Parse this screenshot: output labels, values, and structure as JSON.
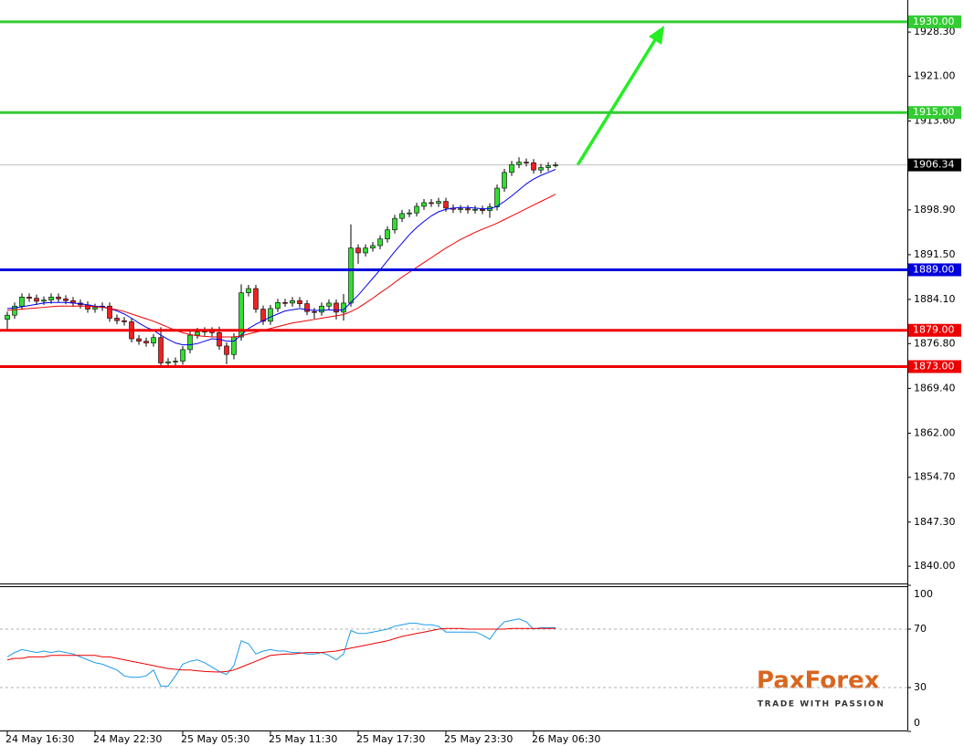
{
  "chart_data": [
    {
      "type": "candlestick",
      "categories": [
        "24 May 16:30",
        null,
        null,
        null,
        null,
        null,
        null,
        null,
        null,
        null,
        null,
        null,
        "24 May 22:30",
        null,
        null,
        null,
        null,
        null,
        null,
        null,
        null,
        null,
        null,
        null,
        "25 May 05:30",
        null,
        null,
        null,
        null,
        null,
        null,
        null,
        null,
        null,
        null,
        null,
        "25 May 11:30",
        null,
        null,
        null,
        null,
        null,
        null,
        null,
        null,
        null,
        null,
        null,
        "25 May 17:30",
        null,
        null,
        null,
        null,
        null,
        null,
        null,
        null,
        null,
        null,
        null,
        "25 May 23:30",
        null,
        null,
        null,
        null,
        null,
        null,
        null,
        null,
        null,
        null,
        null,
        "26 May 06:30",
        null,
        null,
        null
      ],
      "open": [
        1880.8,
        1881.5,
        1883.0,
        1884.5,
        1884.3,
        1883.8,
        1884.0,
        1884.5,
        1884.2,
        1883.9,
        1883.5,
        1883.2,
        1882.5,
        1882.8,
        1883.0,
        1881.0,
        1880.6,
        1880.4,
        1877.6,
        1877.2,
        1876.9,
        1877.8,
        1873.6,
        1873.8,
        1873.9,
        1875.8,
        1878.2,
        1878.7,
        1878.9,
        1878.6,
        1876.4,
        1875.0,
        1877.9,
        1885.2,
        1885.9,
        1882.5,
        1880.5,
        1882.6,
        1883.6,
        1883.5,
        1883.9,
        1883.4,
        1882.1,
        1882.0,
        1883.0,
        1883.5,
        1882.0,
        1883.5,
        1892.6,
        1891.8,
        1892.6,
        1893.0,
        1894.1,
        1895.6,
        1897.5,
        1898.3,
        1898.4,
        1899.5,
        1900.1,
        1900.0,
        1900.3,
        1899.2,
        1899.0,
        1899.1,
        1898.9,
        1899.0,
        1898.8,
        1899.4,
        1902.5,
        1905.1,
        1906.4,
        1906.8,
        1906.7,
        1905.5,
        1905.9,
        1906.2
      ],
      "high": [
        1882.1,
        1883.6,
        1885.1,
        1885.1,
        1884.9,
        1884.6,
        1885.1,
        1885.1,
        1884.8,
        1884.5,
        1884.1,
        1883.8,
        1883.4,
        1883.6,
        1883.6,
        1881.6,
        1881.2,
        1881.0,
        1878.2,
        1877.8,
        1878.4,
        1879.5,
        1874.4,
        1874.5,
        1876.4,
        1878.8,
        1879.4,
        1879.5,
        1879.5,
        1879.6,
        1877.0,
        1878.5,
        1886.6,
        1886.5,
        1886.5,
        1883.1,
        1883.2,
        1884.2,
        1884.2,
        1884.5,
        1884.5,
        1884.0,
        1882.7,
        1883.6,
        1884.1,
        1884.1,
        1885.0,
        1896.5,
        1893.2,
        1893.2,
        1893.6,
        1894.7,
        1896.2,
        1898.1,
        1898.9,
        1899.0,
        1900.1,
        1900.7,
        1900.7,
        1900.9,
        1900.9,
        1899.8,
        1899.7,
        1899.7,
        1899.6,
        1899.6,
        1900.0,
        1903.1,
        1905.7,
        1907.0,
        1907.6,
        1907.4,
        1907.3,
        1906.5,
        1906.8,
        1906.8
      ],
      "low": [
        1879.2,
        1880.9,
        1882.4,
        1883.7,
        1883.2,
        1883.2,
        1883.4,
        1883.6,
        1883.3,
        1882.9,
        1882.6,
        1881.9,
        1881.9,
        1882.2,
        1880.4,
        1880.0,
        1879.8,
        1877.0,
        1876.6,
        1876.3,
        1876.3,
        1872.8,
        1872.8,
        1872.9,
        1873.3,
        1875.2,
        1877.6,
        1878.1,
        1878.0,
        1875.8,
        1873.4,
        1874.2,
        1877.3,
        1884.6,
        1881.9,
        1879.9,
        1879.9,
        1882.0,
        1882.9,
        1882.9,
        1882.8,
        1881.5,
        1880.9,
        1881.4,
        1882.4,
        1880.8,
        1880.6,
        1882.9,
        1890.0,
        1891.2,
        1892.0,
        1892.4,
        1893.5,
        1895.0,
        1896.9,
        1897.7,
        1897.8,
        1898.9,
        1899.4,
        1899.4,
        1898.6,
        1898.4,
        1898.4,
        1898.3,
        1898.3,
        1898.2,
        1897.6,
        1898.8,
        1901.9,
        1904.5,
        1905.8,
        1906.1,
        1904.9,
        1904.9,
        1905.3,
        1905.9
      ],
      "close": [
        1881.5,
        1883.0,
        1884.5,
        1884.3,
        1883.8,
        1884.0,
        1884.5,
        1884.2,
        1883.9,
        1883.5,
        1883.2,
        1882.5,
        1882.8,
        1883.0,
        1881.0,
        1880.6,
        1880.4,
        1877.6,
        1877.2,
        1876.9,
        1877.8,
        1873.6,
        1873.8,
        1873.9,
        1875.8,
        1878.2,
        1878.7,
        1878.9,
        1878.6,
        1876.4,
        1875.0,
        1877.9,
        1885.2,
        1885.9,
        1882.5,
        1880.5,
        1882.6,
        1883.6,
        1883.5,
        1883.9,
        1883.4,
        1882.1,
        1882.0,
        1883.0,
        1883.5,
        1882.0,
        1883.5,
        1892.6,
        1891.8,
        1892.6,
        1893.0,
        1894.1,
        1895.6,
        1897.5,
        1898.3,
        1898.4,
        1899.5,
        1900.1,
        1900.0,
        1900.3,
        1899.2,
        1899.0,
        1899.1,
        1898.9,
        1899.0,
        1898.8,
        1899.4,
        1902.5,
        1905.1,
        1906.4,
        1906.8,
        1906.7,
        1905.5,
        1905.9,
        1906.2,
        1906.34
      ],
      "up_color": "#33dd33",
      "down_color": "#ee2222",
      "wick_color": "#000000",
      "overlays": [
        {
          "color": "#0000ee",
          "values": [
            1882.6,
            1882.7,
            1882.9,
            1883.1,
            1883.3,
            1883.5,
            1883.6,
            1883.6,
            1883.6,
            1883.5,
            1883.4,
            1883.2,
            1883.0,
            1882.9,
            1882.6,
            1882.2,
            1881.7,
            1881.0,
            1880.2,
            1879.5,
            1879.0,
            1878.2,
            1877.5,
            1876.9,
            1876.6,
            1876.6,
            1876.8,
            1877.2,
            1877.6,
            1877.5,
            1877.2,
            1877.2,
            1878.2,
            1879.3,
            1880.0,
            1880.6,
            1881.2,
            1881.7,
            1882.2,
            1882.4,
            1882.6,
            1882.4,
            1882.3,
            1882.3,
            1882.4,
            1882.3,
            1882.4,
            1883.6,
            1884.8,
            1886.2,
            1887.6,
            1889.0,
            1890.5,
            1892.0,
            1893.4,
            1894.8,
            1896.0,
            1897.0,
            1897.9,
            1898.6,
            1899.0,
            1899.2,
            1899.3,
            1899.3,
            1899.2,
            1899.1,
            1899.1,
            1899.5,
            1900.3,
            1901.2,
            1902.2,
            1903.2,
            1904.0,
            1904.6,
            1905.1,
            1905.6
          ]
        },
        {
          "color": "#ee0000",
          "values": [
            1882.3,
            1882.4,
            1882.5,
            1882.6,
            1882.7,
            1882.8,
            1882.9,
            1883.0,
            1883.0,
            1883.0,
            1883.0,
            1883.0,
            1882.9,
            1882.8,
            1882.6,
            1882.4,
            1882.1,
            1881.7,
            1881.3,
            1880.9,
            1880.5,
            1880.0,
            1879.5,
            1879.0,
            1878.6,
            1878.3,
            1878.1,
            1878.0,
            1877.9,
            1877.9,
            1877.9,
            1877.9,
            1878.1,
            1878.4,
            1878.7,
            1879.0,
            1879.3,
            1879.6,
            1879.9,
            1880.2,
            1880.4,
            1880.6,
            1880.8,
            1881.0,
            1881.2,
            1881.4,
            1881.6,
            1882.1,
            1882.7,
            1883.5,
            1884.3,
            1885.2,
            1886.0,
            1886.9,
            1887.8,
            1888.6,
            1889.4,
            1890.2,
            1891.0,
            1891.8,
            1892.6,
            1893.3,
            1894.0,
            1894.6,
            1895.2,
            1895.7,
            1896.2,
            1896.7,
            1897.3,
            1897.9,
            1898.5,
            1899.1,
            1899.7,
            1900.3,
            1900.9,
            1901.5
          ]
        }
      ],
      "levels": [
        {
          "value": 1930,
          "label": "1930.00",
          "color": "#33cc33"
        },
        {
          "value": 1915,
          "label": "1915.00",
          "color": "#33cc33"
        },
        {
          "value": 1889,
          "label": "1889.00",
          "color": "#0000dd"
        },
        {
          "value": 1879,
          "label": "1879.00",
          "color": "#ee0000"
        },
        {
          "value": 1873,
          "label": "1873.00",
          "color": "#ee0000"
        }
      ],
      "last_price": {
        "value": 1906.34,
        "label": "1906.34"
      },
      "ylim": [
        1837,
        1933.6
      ],
      "yticks": [
        {
          "value": 1928.3,
          "label": "1928.30"
        },
        {
          "value": 1921,
          "label": "1921.00"
        },
        {
          "value": 1913.6,
          "label": "1913.60"
        },
        {
          "value": 1898.9,
          "label": "1898.90"
        },
        {
          "value": 1891.5,
          "label": "1891.50"
        },
        {
          "value": 1884.1,
          "label": "1884.10"
        },
        {
          "value": 1876.8,
          "label": "1876.80"
        },
        {
          "value": 1869.4,
          "label": "1869.40"
        },
        {
          "value": 1862,
          "label": "1862.00"
        },
        {
          "value": 1854.7,
          "label": "1854.70"
        },
        {
          "value": 1847.3,
          "label": "1847.30"
        },
        {
          "value": 1840,
          "label": "1840.00"
        }
      ]
    },
    {
      "type": "line",
      "series": [
        {
          "color": "#1e9be9",
          "values": [
            51,
            54,
            56,
            55,
            54,
            55,
            54,
            55,
            54,
            53,
            51,
            49,
            47,
            46,
            44,
            42,
            38,
            37,
            37,
            38,
            42,
            31,
            31,
            38,
            46,
            48,
            49,
            47,
            44,
            41,
            39,
            45,
            62,
            60,
            53,
            55,
            56,
            55,
            55,
            54,
            54,
            53,
            53,
            54,
            52,
            49,
            53,
            69,
            67,
            67,
            68,
            69,
            70,
            72,
            73,
            74,
            74,
            73,
            73,
            72,
            68,
            68,
            68,
            68,
            68,
            66,
            63,
            70,
            75,
            76,
            77,
            75,
            70,
            71,
            71,
            71
          ]
        },
        {
          "color": "#ee0000",
          "values": [
            49,
            50,
            50,
            51,
            51,
            51,
            52,
            52,
            52,
            52,
            52,
            52,
            52,
            51,
            51,
            50,
            49,
            48,
            47,
            46,
            45,
            44,
            43,
            42.5,
            42,
            42,
            41.5,
            41,
            40.8,
            40.6,
            41,
            42,
            44,
            46,
            48,
            50,
            52,
            52.5,
            53,
            53,
            53.5,
            54,
            54,
            54,
            54.5,
            55,
            56,
            57,
            58,
            59,
            60,
            61,
            62,
            63.5,
            65,
            66,
            67,
            68,
            69,
            70,
            70.5,
            70.5,
            70.5,
            70,
            70,
            70,
            70,
            70,
            70,
            70.5,
            70.5,
            70.5,
            70.5,
            70.5,
            70.5,
            70.5
          ]
        }
      ],
      "levels": [
        70,
        30
      ],
      "ylim": [
        0,
        100
      ],
      "yticks": [
        100,
        70,
        30,
        0
      ]
    }
  ],
  "logo": {
    "name": "PaxForex",
    "tagline": "TRADE WITH PASSION"
  }
}
